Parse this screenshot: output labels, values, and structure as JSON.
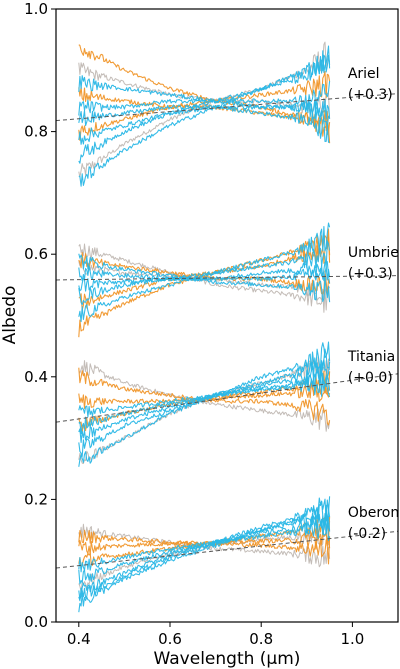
{
  "chart_data": {
    "type": "line",
    "xlabel": "Wavelength (μm)",
    "ylabel": "Albedo",
    "xlim": [
      0.35,
      1.1
    ],
    "ylim": [
      0.0,
      1.0
    ],
    "xticks": [
      "0.4",
      "0.6",
      "0.8",
      "1.0"
    ],
    "yticks": [
      "0.0",
      "0.2",
      "0.4",
      "0.6",
      "0.8",
      "1.0"
    ],
    "grid": false,
    "colors": {
      "cyan": "#2ab7e6",
      "orange": "#f0962a",
      "gray": "#b8b0aa",
      "fit": "#555555"
    },
    "groups": [
      {
        "name": "Ariel",
        "offset": "(+0.3)",
        "fit": {
          "x": [
            0.35,
            1.1
          ],
          "y": [
            0.818,
            0.862
          ]
        },
        "series": [
          {
            "color": "orange",
            "x": [
              0.4,
              0.5,
              0.6,
              0.7,
              0.8,
              0.9,
              0.95
            ],
            "y": [
              0.94,
              0.9,
              0.87,
              0.85,
              0.84,
              0.82,
              0.8
            ]
          },
          {
            "color": "orange",
            "x": [
              0.4,
              0.5,
              0.6,
              0.7,
              0.8,
              0.9,
              0.95
            ],
            "y": [
              0.8,
              0.82,
              0.84,
              0.85,
              0.86,
              0.87,
              0.88
            ]
          },
          {
            "color": "orange",
            "x": [
              0.4,
              0.5,
              0.6,
              0.7,
              0.8,
              0.9,
              0.95
            ],
            "y": [
              0.86,
              0.85,
              0.84,
              0.84,
              0.83,
              0.82,
              0.81
            ]
          },
          {
            "color": "gray",
            "x": [
              0.4,
              0.5,
              0.6,
              0.7,
              0.8,
              0.9,
              0.95
            ],
            "y": [
              0.73,
              0.78,
              0.82,
              0.85,
              0.87,
              0.9,
              0.93
            ]
          },
          {
            "color": "gray",
            "x": [
              0.4,
              0.5,
              0.6,
              0.7,
              0.8,
              0.9,
              0.95
            ],
            "y": [
              0.9,
              0.88,
              0.86,
              0.85,
              0.85,
              0.84,
              0.84
            ]
          },
          {
            "color": "cyan",
            "x": [
              0.4,
              0.5,
              0.6,
              0.7,
              0.8,
              0.9,
              0.95
            ],
            "y": [
              0.72,
              0.77,
              0.81,
              0.84,
              0.87,
              0.9,
              0.92
            ]
          },
          {
            "color": "cyan",
            "x": [
              0.4,
              0.5,
              0.6,
              0.7,
              0.8,
              0.9,
              0.95
            ],
            "y": [
              0.88,
              0.87,
              0.86,
              0.85,
              0.85,
              0.85,
              0.86
            ]
          },
          {
            "color": "cyan",
            "x": [
              0.4,
              0.5,
              0.6,
              0.7,
              0.8,
              0.9,
              0.95
            ],
            "y": [
              0.84,
              0.84,
              0.85,
              0.85,
              0.84,
              0.84,
              0.83
            ]
          },
          {
            "color": "cyan",
            "x": [
              0.4,
              0.5,
              0.6,
              0.7,
              0.8,
              0.9,
              0.95
            ],
            "y": [
              0.79,
              0.81,
              0.83,
              0.84,
              0.84,
              0.84,
              0.83
            ]
          },
          {
            "color": "cyan",
            "x": [
              0.4,
              0.5,
              0.6,
              0.7,
              0.8,
              0.9,
              0.95
            ],
            "y": [
              0.82,
              0.83,
              0.84,
              0.84,
              0.83,
              0.82,
              0.8
            ]
          },
          {
            "color": "cyan",
            "x": [
              0.4,
              0.5,
              0.6,
              0.7,
              0.8,
              0.9,
              0.95
            ],
            "y": [
              0.76,
              0.8,
              0.83,
              0.85,
              0.87,
              0.89,
              0.91
            ]
          }
        ]
      },
      {
        "name": "Umbriel",
        "offset": "(+0.3)",
        "fit": {
          "x": [
            0.35,
            1.1
          ],
          "y": [
            0.558,
            0.565
          ]
        },
        "series": [
          {
            "color": "orange",
            "x": [
              0.4,
              0.5,
              0.6,
              0.7,
              0.8,
              0.9,
              0.95
            ],
            "y": [
              0.48,
              0.52,
              0.55,
              0.57,
              0.59,
              0.61,
              0.62
            ]
          },
          {
            "color": "orange",
            "x": [
              0.4,
              0.5,
              0.6,
              0.7,
              0.8,
              0.9,
              0.95
            ],
            "y": [
              0.52,
              0.54,
              0.56,
              0.57,
              0.58,
              0.6,
              0.61
            ]
          },
          {
            "color": "orange",
            "x": [
              0.4,
              0.5,
              0.6,
              0.7,
              0.8,
              0.9,
              0.95
            ],
            "y": [
              0.59,
              0.58,
              0.57,
              0.56,
              0.56,
              0.55,
              0.55
            ]
          },
          {
            "color": "gray",
            "x": [
              0.4,
              0.5,
              0.6,
              0.7,
              0.8,
              0.9,
              0.95
            ],
            "y": [
              0.61,
              0.59,
              0.57,
              0.55,
              0.54,
              0.53,
              0.52
            ]
          },
          {
            "color": "gray",
            "x": [
              0.4,
              0.5,
              0.6,
              0.7,
              0.8,
              0.9,
              0.95
            ],
            "y": [
              0.58,
              0.57,
              0.565,
              0.56,
              0.55,
              0.545,
              0.54
            ]
          },
          {
            "color": "cyan",
            "x": [
              0.4,
              0.5,
              0.6,
              0.7,
              0.8,
              0.9,
              0.95
            ],
            "y": [
              0.5,
              0.53,
              0.55,
              0.57,
              0.59,
              0.61,
              0.63
            ]
          },
          {
            "color": "cyan",
            "x": [
              0.4,
              0.5,
              0.6,
              0.7,
              0.8,
              0.9,
              0.95
            ],
            "y": [
              0.53,
              0.55,
              0.56,
              0.57,
              0.58,
              0.59,
              0.6
            ]
          },
          {
            "color": "cyan",
            "x": [
              0.4,
              0.5,
              0.6,
              0.7,
              0.8,
              0.9,
              0.95
            ],
            "y": [
              0.57,
              0.565,
              0.56,
              0.56,
              0.56,
              0.565,
              0.57
            ]
          },
          {
            "color": "cyan",
            "x": [
              0.4,
              0.5,
              0.6,
              0.7,
              0.8,
              0.9,
              0.95
            ],
            "y": [
              0.55,
              0.555,
              0.56,
              0.56,
              0.57,
              0.575,
              0.58
            ]
          },
          {
            "color": "cyan",
            "x": [
              0.4,
              0.5,
              0.6,
              0.7,
              0.8,
              0.9,
              0.95
            ],
            "y": [
              0.59,
              0.575,
              0.565,
              0.555,
              0.55,
              0.545,
              0.54
            ]
          }
        ]
      },
      {
        "name": "Titania",
        "offset": "(+0.0)",
        "fit": {
          "x": [
            0.35,
            1.1
          ],
          "y": [
            0.326,
            0.405
          ]
        },
        "series": [
          {
            "color": "orange",
            "x": [
              0.4,
              0.5,
              0.6,
              0.7,
              0.8,
              0.9,
              0.95
            ],
            "y": [
              0.4,
              0.38,
              0.37,
              0.36,
              0.36,
              0.35,
              0.34
            ]
          },
          {
            "color": "orange",
            "x": [
              0.4,
              0.5,
              0.6,
              0.7,
              0.8,
              0.9,
              0.95
            ],
            "y": [
              0.32,
              0.34,
              0.355,
              0.365,
              0.375,
              0.385,
              0.39
            ]
          },
          {
            "color": "orange",
            "x": [
              0.4,
              0.5,
              0.6,
              0.7,
              0.8,
              0.9,
              0.95
            ],
            "y": [
              0.36,
              0.36,
              0.36,
              0.365,
              0.37,
              0.375,
              0.38
            ]
          },
          {
            "color": "gray",
            "x": [
              0.4,
              0.5,
              0.6,
              0.7,
              0.8,
              0.9,
              0.95
            ],
            "y": [
              0.42,
              0.39,
              0.37,
              0.355,
              0.345,
              0.335,
              0.33
            ]
          },
          {
            "color": "gray",
            "x": [
              0.4,
              0.5,
              0.6,
              0.7,
              0.8,
              0.9,
              0.95
            ],
            "y": [
              0.26,
              0.3,
              0.34,
              0.37,
              0.39,
              0.41,
              0.42
            ]
          },
          {
            "color": "cyan",
            "x": [
              0.4,
              0.5,
              0.6,
              0.7,
              0.8,
              0.9,
              0.95
            ],
            "y": [
              0.26,
              0.3,
              0.34,
              0.37,
              0.4,
              0.42,
              0.44
            ]
          },
          {
            "color": "cyan",
            "x": [
              0.4,
              0.5,
              0.6,
              0.7,
              0.8,
              0.9,
              0.95
            ],
            "y": [
              0.28,
              0.32,
              0.345,
              0.37,
              0.39,
              0.41,
              0.43
            ]
          },
          {
            "color": "cyan",
            "x": [
              0.4,
              0.5,
              0.6,
              0.7,
              0.8,
              0.9,
              0.95
            ],
            "y": [
              0.3,
              0.33,
              0.35,
              0.37,
              0.385,
              0.4,
              0.41
            ]
          },
          {
            "color": "cyan",
            "x": [
              0.4,
              0.5,
              0.6,
              0.7,
              0.8,
              0.9,
              0.95
            ],
            "y": [
              0.32,
              0.34,
              0.355,
              0.37,
              0.38,
              0.39,
              0.4
            ]
          },
          {
            "color": "cyan",
            "x": [
              0.4,
              0.5,
              0.6,
              0.7,
              0.8,
              0.9,
              0.95
            ],
            "y": [
              0.34,
              0.35,
              0.36,
              0.37,
              0.38,
              0.385,
              0.39
            ]
          }
        ]
      },
      {
        "name": "Oberon",
        "offset": "(-0.2)",
        "fit": {
          "x": [
            0.35,
            1.1
          ],
          "y": [
            0.088,
            0.148
          ]
        },
        "series": [
          {
            "color": "orange",
            "x": [
              0.4,
              0.5,
              0.6,
              0.7,
              0.8,
              0.9,
              0.95
            ],
            "y": [
              0.12,
              0.125,
              0.128,
              0.13,
              0.132,
              0.134,
              0.135
            ]
          },
          {
            "color": "orange",
            "x": [
              0.4,
              0.5,
              0.6,
              0.7,
              0.8,
              0.9,
              0.95
            ],
            "y": [
              0.1,
              0.11,
              0.12,
              0.13,
              0.14,
              0.15,
              0.155
            ]
          },
          {
            "color": "orange",
            "x": [
              0.4,
              0.5,
              0.6,
              0.7,
              0.8,
              0.9,
              0.95
            ],
            "y": [
              0.14,
              0.135,
              0.13,
              0.128,
              0.125,
              0.12,
              0.118
            ]
          },
          {
            "color": "gray",
            "x": [
              0.4,
              0.5,
              0.6,
              0.7,
              0.8,
              0.9,
              0.95
            ],
            "y": [
              0.06,
              0.09,
              0.11,
              0.125,
              0.135,
              0.14,
              0.145
            ]
          },
          {
            "color": "gray",
            "x": [
              0.4,
              0.5,
              0.6,
              0.7,
              0.8,
              0.9,
              0.95
            ],
            "y": [
              0.15,
              0.14,
              0.13,
              0.12,
              0.115,
              0.11,
              0.105
            ]
          },
          {
            "color": "cyan",
            "x": [
              0.4,
              0.5,
              0.6,
              0.7,
              0.8,
              0.9,
              0.95
            ],
            "y": [
              0.03,
              0.07,
              0.1,
              0.125,
              0.15,
              0.17,
              0.18
            ]
          },
          {
            "color": "cyan",
            "x": [
              0.4,
              0.5,
              0.6,
              0.7,
              0.8,
              0.9,
              0.95
            ],
            "y": [
              0.05,
              0.08,
              0.11,
              0.13,
              0.15,
              0.165,
              0.175
            ]
          },
          {
            "color": "cyan",
            "x": [
              0.4,
              0.5,
              0.6,
              0.7,
              0.8,
              0.9,
              0.95
            ],
            "y": [
              0.07,
              0.095,
              0.115,
              0.13,
              0.145,
              0.155,
              0.16
            ]
          },
          {
            "color": "cyan",
            "x": [
              0.4,
              0.5,
              0.6,
              0.7,
              0.8,
              0.9,
              0.95
            ],
            "y": [
              0.09,
              0.105,
              0.12,
              0.13,
              0.14,
              0.15,
              0.155
            ]
          },
          {
            "color": "cyan",
            "x": [
              0.4,
              0.5,
              0.6,
              0.7,
              0.8,
              0.9,
              0.95
            ],
            "y": [
              0.04,
              0.075,
              0.105,
              0.13,
              0.155,
              0.175,
              0.19
            ]
          }
        ]
      }
    ]
  }
}
